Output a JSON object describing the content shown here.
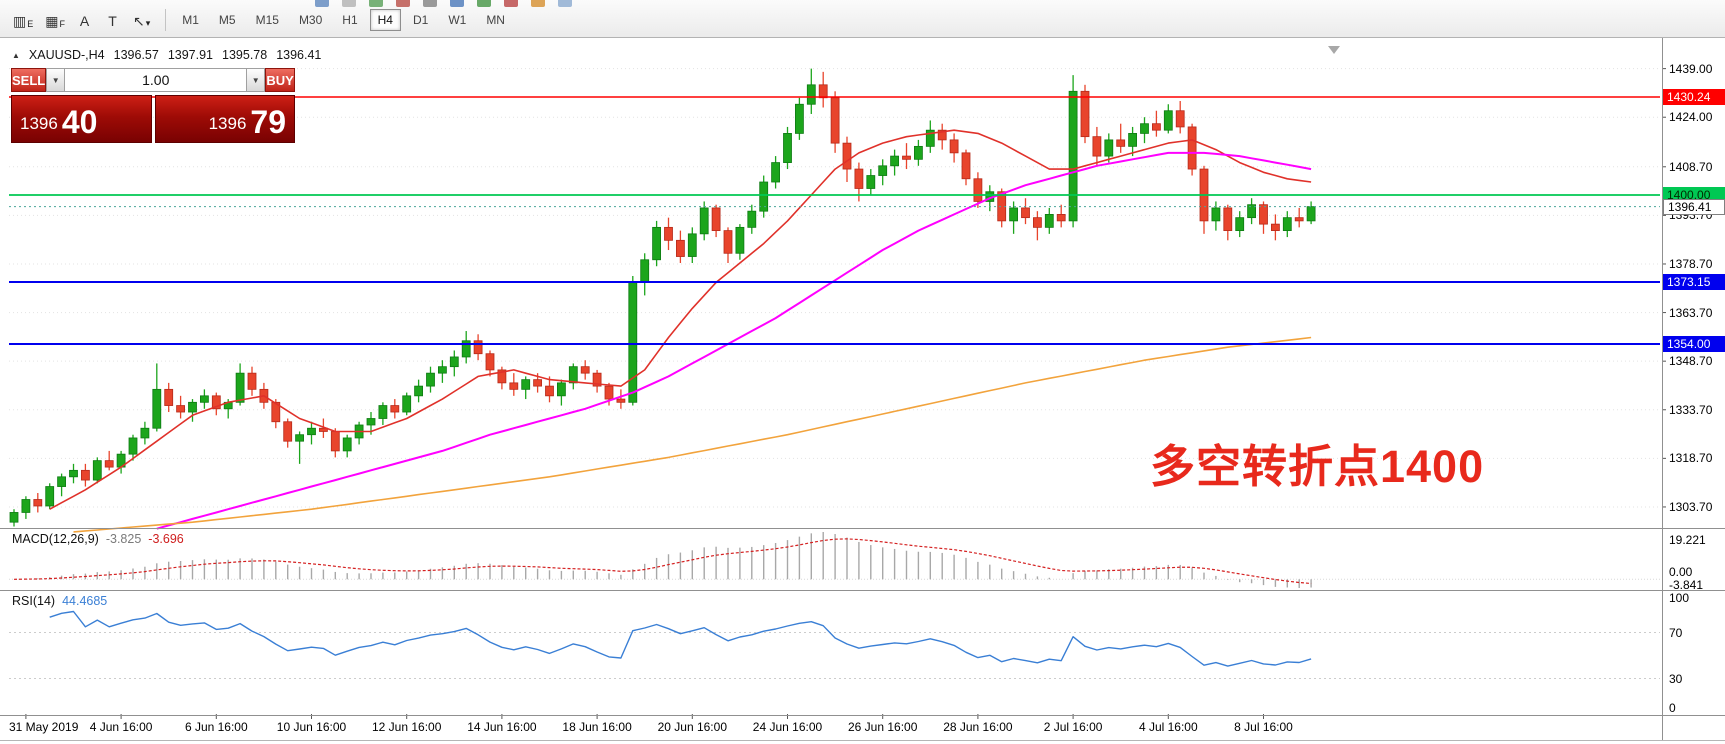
{
  "icons": {
    "caret_down": "▼",
    "triangle_up": "▲"
  },
  "toolbar": {
    "tools": [
      {
        "name": "indicator-chart",
        "glyph": "▥",
        "sub": "E"
      },
      {
        "name": "grid-template",
        "glyph": "▦",
        "sub": "F"
      },
      {
        "name": "text-annotation",
        "glyph": "A",
        "sub": ""
      },
      {
        "name": "text-label",
        "glyph": "T",
        "sub": ""
      },
      {
        "name": "cursor-tool",
        "glyph": "↖",
        "sub": "▾"
      }
    ],
    "timeframes": [
      "M1",
      "M5",
      "M15",
      "M30",
      "H1",
      "H4",
      "D1",
      "W1",
      "MN"
    ],
    "active_timeframe": "H4",
    "clipped_icon_colors": [
      "#6f93c4",
      "#b9b9b9",
      "#69a869",
      "#c0605a",
      "#8f8f8f",
      "#5d86c0",
      "#58a058",
      "#c05858",
      "#d99a45",
      "#97b3d4"
    ]
  },
  "chart_info": {
    "symbol_period": "XAUUSD-,H4",
    "open": "1396.57",
    "high": "1397.91",
    "low": "1395.78",
    "close": "1396.41"
  },
  "trade_panel": {
    "sell_label": "SELL",
    "buy_label": "BUY",
    "volume": "1.00",
    "bid": {
      "main": "1396",
      "pips": "40"
    },
    "ask": {
      "main": "1396",
      "pips": "79"
    }
  },
  "chart_data": {
    "type": "candlestick",
    "symbol": "XAUUSD-",
    "period": "H4",
    "up_color": "#1ca51c",
    "down_color": "#e8442c",
    "annotation": {
      "text": "多空转折点1400",
      "color": "#e8291c"
    },
    "y_ticks": [
      {
        "label": "1439.00",
        "price": 1439.0
      },
      {
        "label": "1424.00",
        "price": 1424.0
      },
      {
        "label": "1408.70",
        "price": 1408.7
      },
      {
        "label": "1393.70",
        "price": 1393.7
      },
      {
        "label": "1378.70",
        "price": 1378.7
      },
      {
        "label": "1363.70",
        "price": 1363.7
      },
      {
        "label": "1348.70",
        "price": 1348.7
      },
      {
        "label": "1333.70",
        "price": 1333.7
      },
      {
        "label": "1318.70",
        "price": 1318.7
      },
      {
        "label": "1303.70",
        "price": 1303.7
      }
    ],
    "levels": [
      {
        "price": 1430.24,
        "label": "1430.24",
        "color": "#ff0000",
        "style": "solid",
        "width": 1.4,
        "badge_bg": "#ff0000",
        "badge_fg": "#ffffff"
      },
      {
        "price": 1400.0,
        "label": "1400.00",
        "color": "#00c853",
        "style": "solid",
        "width": 1.8,
        "badge_bg": "#00c853",
        "badge_fg": "#002b00"
      },
      {
        "price": 1396.41,
        "label": "1396.41",
        "color": "#4aa59a",
        "style": "dotted",
        "width": 1,
        "badge_bg": "#ffffff",
        "badge_fg": "#000000"
      },
      {
        "price": 1373.15,
        "label": "1373.15",
        "color": "#0000ee",
        "style": "solid",
        "width": 2,
        "badge_bg": "#0000ee",
        "badge_fg": "#ffffff"
      },
      {
        "price": 1354.0,
        "label": "1354.00",
        "color": "#0000ee",
        "style": "solid",
        "width": 2,
        "badge_bg": "#0000ee",
        "badge_fg": "#ffffff"
      }
    ],
    "x_labels": [
      "31 May 2019",
      "4 Jun 16:00",
      "6 Jun 16:00",
      "10 Jun 16:00",
      "12 Jun 16:00",
      "14 Jun 16:00",
      "18 Jun 16:00",
      "20 Jun 16:00",
      "24 Jun 16:00",
      "26 Jun 16:00",
      "28 Jun 16:00",
      "2 Jul 16:00",
      "4 Jul 16:00",
      "8 Jul 16:00"
    ],
    "candles": [
      [
        1299,
        1303,
        1297,
        1302
      ],
      [
        1302,
        1307,
        1300,
        1306
      ],
      [
        1306,
        1308,
        1302,
        1304
      ],
      [
        1304,
        1311,
        1303,
        1310
      ],
      [
        1310,
        1314,
        1307,
        1313
      ],
      [
        1313,
        1317,
        1311,
        1315
      ],
      [
        1315,
        1317,
        1310,
        1312
      ],
      [
        1312,
        1319,
        1311,
        1318
      ],
      [
        1318,
        1321,
        1315,
        1316
      ],
      [
        1316,
        1321,
        1314,
        1320
      ],
      [
        1320,
        1326,
        1318,
        1325
      ],
      [
        1325,
        1330,
        1323,
        1328
      ],
      [
        1328,
        1348,
        1327,
        1340
      ],
      [
        1340,
        1342,
        1333,
        1335
      ],
      [
        1335,
        1338,
        1331,
        1333
      ],
      [
        1333,
        1337,
        1330,
        1336
      ],
      [
        1336,
        1340,
        1334,
        1338
      ],
      [
        1338,
        1339,
        1332,
        1334
      ],
      [
        1334,
        1337,
        1331,
        1336
      ],
      [
        1336,
        1348,
        1335,
        1345
      ],
      [
        1345,
        1347,
        1338,
        1340
      ],
      [
        1340,
        1342,
        1334,
        1336
      ],
      [
        1336,
        1337,
        1328,
        1330
      ],
      [
        1330,
        1331,
        1322,
        1324
      ],
      [
        1324,
        1327,
        1317,
        1326
      ],
      [
        1326,
        1330,
        1323,
        1328
      ],
      [
        1328,
        1331,
        1325,
        1327
      ],
      [
        1327,
        1328,
        1319,
        1321
      ],
      [
        1321,
        1326,
        1319,
        1325
      ],
      [
        1325,
        1330,
        1323,
        1329
      ],
      [
        1329,
        1333,
        1326,
        1331
      ],
      [
        1331,
        1336,
        1329,
        1335
      ],
      [
        1335,
        1337,
        1331,
        1333
      ],
      [
        1333,
        1339,
        1332,
        1338
      ],
      [
        1338,
        1343,
        1336,
        1341
      ],
      [
        1341,
        1347,
        1339,
        1345
      ],
      [
        1345,
        1349,
        1342,
        1347
      ],
      [
        1347,
        1352,
        1344,
        1350
      ],
      [
        1350,
        1358,
        1348,
        1355
      ],
      [
        1355,
        1357,
        1349,
        1351
      ],
      [
        1351,
        1352,
        1344,
        1346
      ],
      [
        1346,
        1347,
        1340,
        1342
      ],
      [
        1342,
        1345,
        1338,
        1340
      ],
      [
        1340,
        1344,
        1337,
        1343
      ],
      [
        1343,
        1345,
        1339,
        1341
      ],
      [
        1341,
        1344,
        1336,
        1338
      ],
      [
        1338,
        1343,
        1335,
        1342
      ],
      [
        1342,
        1348,
        1340,
        1347
      ],
      [
        1347,
        1349,
        1343,
        1345
      ],
      [
        1345,
        1346,
        1339,
        1341
      ],
      [
        1341,
        1342,
        1335,
        1337
      ],
      [
        1337,
        1340,
        1334,
        1336
      ],
      [
        1336,
        1375,
        1335,
        1373
      ],
      [
        1373,
        1382,
        1369,
        1380
      ],
      [
        1380,
        1392,
        1378,
        1390
      ],
      [
        1390,
        1393,
        1383,
        1386
      ],
      [
        1386,
        1389,
        1379,
        1381
      ],
      [
        1381,
        1390,
        1379,
        1388
      ],
      [
        1388,
        1398,
        1386,
        1396
      ],
      [
        1396,
        1397,
        1387,
        1389
      ],
      [
        1389,
        1390,
        1379,
        1382
      ],
      [
        1382,
        1391,
        1380,
        1390
      ],
      [
        1390,
        1397,
        1388,
        1395
      ],
      [
        1395,
        1406,
        1393,
        1404
      ],
      [
        1404,
        1412,
        1402,
        1410
      ],
      [
        1410,
        1421,
        1408,
        1419
      ],
      [
        1419,
        1430,
        1417,
        1428
      ],
      [
        1428,
        1439,
        1425,
        1434
      ],
      [
        1434,
        1438,
        1427,
        1430
      ],
      [
        1430,
        1432,
        1413,
        1416
      ],
      [
        1416,
        1418,
        1404,
        1408
      ],
      [
        1408,
        1410,
        1398,
        1402
      ],
      [
        1402,
        1408,
        1400,
        1406
      ],
      [
        1406,
        1411,
        1403,
        1409
      ],
      [
        1409,
        1414,
        1406,
        1412
      ],
      [
        1412,
        1416,
        1408,
        1411
      ],
      [
        1411,
        1417,
        1409,
        1415
      ],
      [
        1415,
        1423,
        1413,
        1420
      ],
      [
        1420,
        1422,
        1414,
        1417
      ],
      [
        1417,
        1419,
        1410,
        1413
      ],
      [
        1413,
        1414,
        1403,
        1405
      ],
      [
        1405,
        1407,
        1396,
        1398
      ],
      [
        1398,
        1403,
        1395,
        1401
      ],
      [
        1401,
        1402,
        1390,
        1392
      ],
      [
        1392,
        1398,
        1388,
        1396
      ],
      [
        1396,
        1399,
        1391,
        1393
      ],
      [
        1393,
        1395,
        1386,
        1390
      ],
      [
        1390,
        1396,
        1388,
        1394
      ],
      [
        1394,
        1397,
        1390,
        1392
      ],
      [
        1392,
        1437,
        1390,
        1432
      ],
      [
        1432,
        1434,
        1416,
        1418
      ],
      [
        1418,
        1421,
        1409,
        1412
      ],
      [
        1412,
        1419,
        1410,
        1417
      ],
      [
        1417,
        1422,
        1413,
        1415
      ],
      [
        1415,
        1421,
        1412,
        1419
      ],
      [
        1419,
        1424,
        1416,
        1422
      ],
      [
        1422,
        1426,
        1418,
        1420
      ],
      [
        1420,
        1428,
        1419,
        1426
      ],
      [
        1426,
        1429,
        1419,
        1421
      ],
      [
        1421,
        1422,
        1406,
        1408
      ],
      [
        1408,
        1409,
        1388,
        1392
      ],
      [
        1392,
        1398,
        1389,
        1396
      ],
      [
        1396,
        1397,
        1386,
        1389
      ],
      [
        1389,
        1395,
        1387,
        1393
      ],
      [
        1393,
        1399,
        1391,
        1397
      ],
      [
        1397,
        1398,
        1388,
        1391
      ],
      [
        1391,
        1394,
        1386,
        1389
      ],
      [
        1389,
        1395,
        1387,
        1393
      ],
      [
        1393,
        1396,
        1390,
        1392
      ],
      [
        1392,
        1398,
        1391,
        1396.4
      ]
    ],
    "moving_averages": [
      {
        "name": "ma-fast-red",
        "color": "#e0312a",
        "width": 1.6,
        "anchors": [
          [
            3,
            1303
          ],
          [
            6,
            1309
          ],
          [
            9,
            1316
          ],
          [
            12,
            1324
          ],
          [
            15,
            1332
          ],
          [
            18,
            1336
          ],
          [
            21,
            1338
          ],
          [
            24,
            1331
          ],
          [
            27,
            1327
          ],
          [
            30,
            1327
          ],
          [
            33,
            1331
          ],
          [
            36,
            1337
          ],
          [
            39,
            1344
          ],
          [
            42,
            1346
          ],
          [
            45,
            1343
          ],
          [
            48,
            1342
          ],
          [
            51,
            1341
          ],
          [
            53,
            1346
          ],
          [
            55,
            1356
          ],
          [
            57,
            1365
          ],
          [
            59,
            1373
          ],
          [
            61,
            1379
          ],
          [
            63,
            1385
          ],
          [
            65,
            1392
          ],
          [
            67,
            1400
          ],
          [
            69,
            1408
          ],
          [
            71,
            1413
          ],
          [
            73,
            1416
          ],
          [
            75,
            1418
          ],
          [
            77,
            1419
          ],
          [
            79,
            1420
          ],
          [
            81,
            1419
          ],
          [
            83,
            1416
          ],
          [
            85,
            1412
          ],
          [
            87,
            1408
          ],
          [
            89,
            1408
          ],
          [
            91,
            1410
          ],
          [
            93,
            1412
          ],
          [
            95,
            1414
          ],
          [
            97,
            1416
          ],
          [
            99,
            1417
          ],
          [
            101,
            1414
          ],
          [
            103,
            1410
          ],
          [
            105,
            1407
          ],
          [
            107,
            1405
          ],
          [
            109,
            1404
          ]
        ]
      },
      {
        "name": "ma-medium-magenta",
        "color": "#ff00ff",
        "width": 2,
        "anchors": [
          [
            12,
            1297
          ],
          [
            16,
            1301
          ],
          [
            20,
            1305
          ],
          [
            24,
            1309
          ],
          [
            28,
            1313
          ],
          [
            32,
            1317
          ],
          [
            36,
            1321
          ],
          [
            40,
            1326
          ],
          [
            44,
            1330
          ],
          [
            48,
            1334
          ],
          [
            52,
            1339
          ],
          [
            55,
            1344
          ],
          [
            58,
            1350
          ],
          [
            61,
            1356
          ],
          [
            64,
            1362
          ],
          [
            67,
            1369
          ],
          [
            70,
            1376
          ],
          [
            73,
            1383
          ],
          [
            76,
            1389
          ],
          [
            79,
            1394
          ],
          [
            82,
            1399
          ],
          [
            85,
            1403
          ],
          [
            88,
            1406
          ],
          [
            91,
            1409
          ],
          [
            94,
            1411
          ],
          [
            97,
            1413
          ],
          [
            100,
            1413
          ],
          [
            103,
            1412
          ],
          [
            106,
            1410
          ],
          [
            109,
            1408
          ]
        ]
      },
      {
        "name": "ma-slow-orange",
        "color": "#f2a33c",
        "width": 1.6,
        "anchors": [
          [
            5,
            1296
          ],
          [
            15,
            1299
          ],
          [
            25,
            1303
          ],
          [
            35,
            1308
          ],
          [
            45,
            1313
          ],
          [
            55,
            1319
          ],
          [
            65,
            1326
          ],
          [
            75,
            1334
          ],
          [
            85,
            1342
          ],
          [
            95,
            1349
          ],
          [
            102,
            1353
          ],
          [
            109,
            1356
          ]
        ]
      }
    ],
    "indicators": {
      "macd": {
        "label": "MACD(12,26,9)",
        "params": [
          12,
          26,
          9
        ],
        "value_main": "-3.825",
        "value_signal": "-3.696",
        "axis_labels": [
          "19.221",
          "0.00",
          "-3.841"
        ],
        "histogram_color": "#a8a8a8",
        "signal_color": "#d42020"
      },
      "rsi": {
        "label": "RSI(14)",
        "params": [
          14
        ],
        "value": "44.4685",
        "axis_labels": [
          "100",
          "70",
          "30",
          "0"
        ],
        "levels": [
          70,
          30
        ],
        "line_color": "#3a7fd5"
      }
    }
  }
}
